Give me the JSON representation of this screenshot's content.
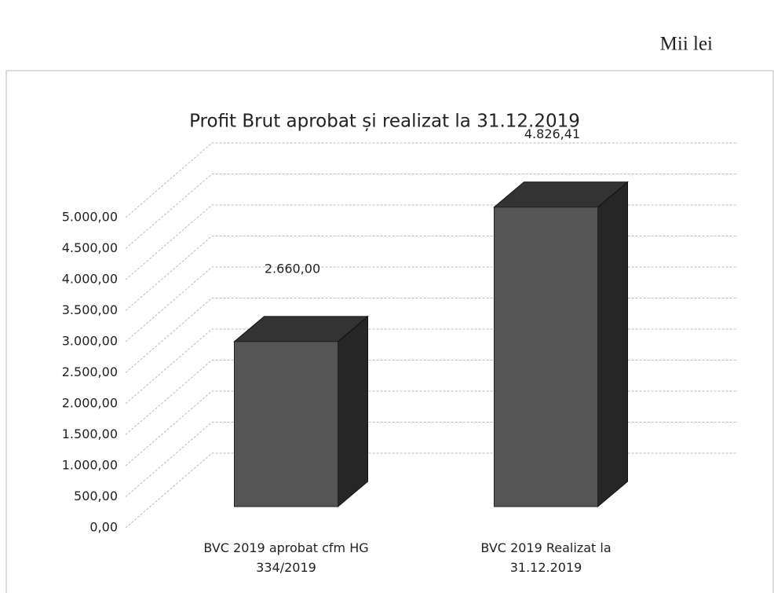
{
  "unit_note": "Mii lei",
  "chart_data": {
    "type": "bar3d",
    "title": "Profit Brut aprobat și realizat la 31.12.2019",
    "categories": [
      "BVC 2019 aprobat cfm HG 334/2019",
      "BVC 2019 Realizat la 31.12.2019"
    ],
    "values": [
      2660,
      4826.41
    ],
    "value_labels": [
      "2.660,00",
      "4.826,41"
    ],
    "color": "#555555",
    "ylim": [
      0,
      5000
    ],
    "yticks": [
      {
        "value": 0,
        "label": "0,00"
      },
      {
        "value": 500,
        "label": "500,00"
      },
      {
        "value": 1000,
        "label": "1.000,00"
      },
      {
        "value": 1500,
        "label": "1.500,00"
      },
      {
        "value": 2000,
        "label": "2.000,00"
      },
      {
        "value": 2500,
        "label": "2.500,00"
      },
      {
        "value": 3000,
        "label": "3.000,00"
      },
      {
        "value": 3500,
        "label": "3.500,00"
      },
      {
        "value": 4000,
        "label": "4.000,00"
      },
      {
        "value": 4500,
        "label": "4.500,00"
      },
      {
        "value": 5000,
        "label": "5.000,00"
      }
    ],
    "grid": true
  }
}
